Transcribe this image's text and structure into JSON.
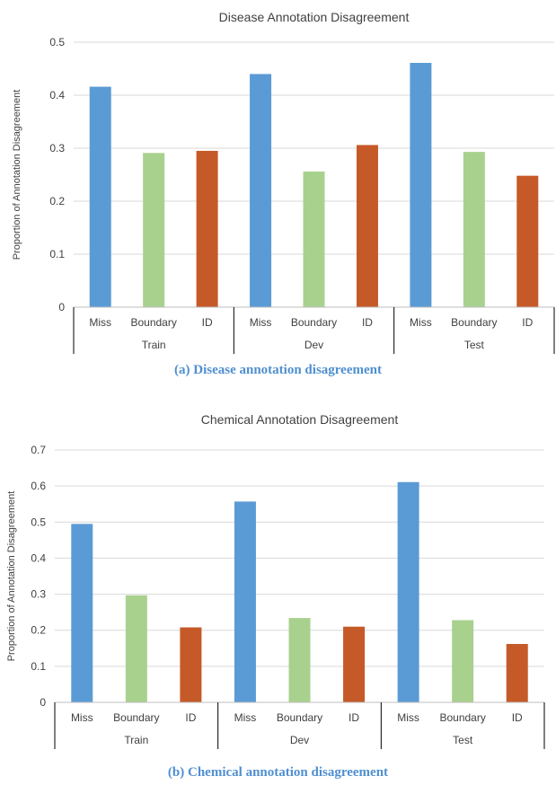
{
  "chart_data": [
    {
      "type": "bar",
      "title": "Disease Annotation Disagreement",
      "ylabel": "Proportion of Annotation Disagreement",
      "xlabel": "",
      "ylim": [
        0,
        0.5
      ],
      "yticks": [
        "0",
        "0.1",
        "0.2",
        "0.3",
        "0.4",
        "0.5"
      ],
      "grid": true,
      "groups": [
        {
          "name": "Train",
          "bars": [
            {
              "label": "Miss",
              "value": 0.416,
              "color": "#5b9bd5"
            },
            {
              "label": "Boundary",
              "value": 0.291,
              "color": "#a9d18e"
            },
            {
              "label": "ID",
              "value": 0.295,
              "color": "#c55a28"
            }
          ]
        },
        {
          "name": "Dev",
          "bars": [
            {
              "label": "Miss",
              "value": 0.44,
              "color": "#5b9bd5"
            },
            {
              "label": "Boundary",
              "value": 0.256,
              "color": "#a9d18e"
            },
            {
              "label": "ID",
              "value": 0.306,
              "color": "#c55a28"
            }
          ]
        },
        {
          "name": "Test",
          "bars": [
            {
              "label": "Miss",
              "value": 0.461,
              "color": "#5b9bd5"
            },
            {
              "label": "Boundary",
              "value": 0.293,
              "color": "#a9d18e"
            },
            {
              "label": "ID",
              "value": 0.248,
              "color": "#c55a28"
            }
          ]
        }
      ],
      "caption": "(a) Disease annotation disagreement"
    },
    {
      "type": "bar",
      "title": "Chemical Annotation Disagreement",
      "ylabel": "Proportion of Annotation Disagreement",
      "xlabel": "",
      "ylim": [
        0,
        0.7
      ],
      "yticks": [
        "0",
        "0.1",
        "0.2",
        "0.3",
        "0.4",
        "0.5",
        "0.6",
        "0.7"
      ],
      "grid": true,
      "groups": [
        {
          "name": "Train",
          "bars": [
            {
              "label": "Miss",
              "value": 0.495,
              "color": "#5b9bd5"
            },
            {
              "label": "Boundary",
              "value": 0.297,
              "color": "#a9d18e"
            },
            {
              "label": "ID",
              "value": 0.208,
              "color": "#c55a28"
            }
          ]
        },
        {
          "name": "Dev",
          "bars": [
            {
              "label": "Miss",
              "value": 0.557,
              "color": "#5b9bd5"
            },
            {
              "label": "Boundary",
              "value": 0.234,
              "color": "#a9d18e"
            },
            {
              "label": "ID",
              "value": 0.21,
              "color": "#c55a28"
            }
          ]
        },
        {
          "name": "Test",
          "bars": [
            {
              "label": "Miss",
              "value": 0.611,
              "color": "#5b9bd5"
            },
            {
              "label": "Boundary",
              "value": 0.228,
              "color": "#a9d18e"
            },
            {
              "label": "ID",
              "value": 0.162,
              "color": "#c55a28"
            }
          ]
        }
      ],
      "caption": "(b) Chemical annotation disagreement"
    }
  ]
}
